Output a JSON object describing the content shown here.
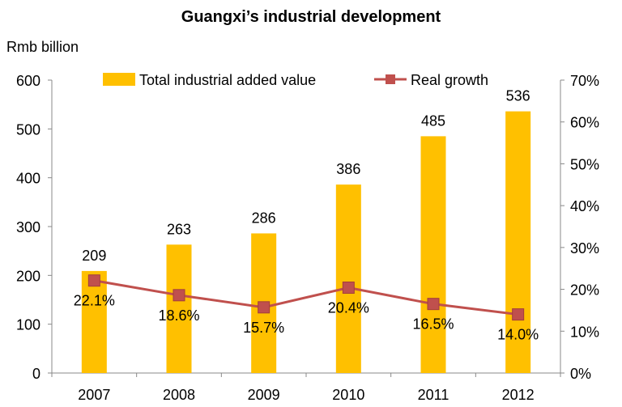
{
  "chart_data": {
    "type": "bar",
    "title": "Guangxi’s industrial development",
    "y_left_label": "Rmb billion",
    "categories": [
      "2007",
      "2008",
      "2009",
      "2010",
      "2011",
      "2012"
    ],
    "series": [
      {
        "name": "Total industrial added value",
        "type": "bar",
        "axis": "left",
        "values": [
          209,
          263,
          286,
          386,
          485,
          536
        ],
        "labels": [
          "209",
          "263",
          "286",
          "386",
          "485",
          "536"
        ],
        "color": "#FFC000"
      },
      {
        "name": "Real growth",
        "type": "line",
        "axis": "right",
        "values": [
          22.1,
          18.6,
          15.7,
          20.4,
          16.5,
          14.0
        ],
        "labels": [
          "22.1%",
          "18.6%",
          "15.7%",
          "20.4%",
          "16.5%",
          "14.0%"
        ],
        "color": "#C0504D"
      }
    ],
    "y_left": {
      "min": 0,
      "max": 600,
      "ticks": [
        "0",
        "100",
        "200",
        "300",
        "400",
        "500",
        "600"
      ]
    },
    "y_right": {
      "min": 0,
      "max": 70,
      "ticks": [
        "0%",
        "10%",
        "20%",
        "30%",
        "40%",
        "50%",
        "60%",
        "70%"
      ]
    },
    "grid": false,
    "legend_position": "top"
  }
}
